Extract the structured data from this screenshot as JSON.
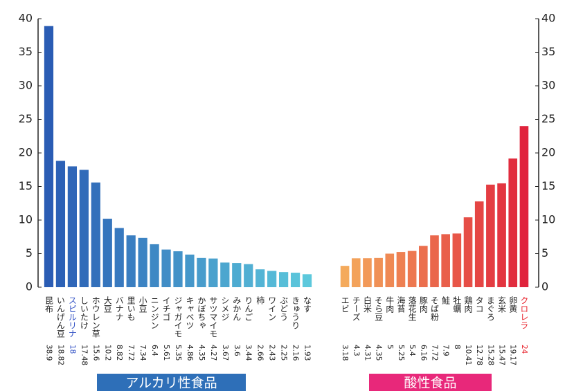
{
  "chart_data": [
    {
      "type": "bar",
      "axis_side": "left",
      "categories": [
        "昆布",
        "いんげん豆",
        "スピルリナ",
        "しいたけ",
        "ホウレン草",
        "大豆",
        "バナナ",
        "里いも",
        "小豆",
        "ニンジン",
        "イチゴ",
        "ジャガイモ",
        "キャベツ",
        "かぼちゃ",
        "サツマイモ",
        "シメジ",
        "みかん",
        "りんご",
        "柿",
        "ワイン",
        "ぶどう",
        "きゅうり",
        "なす"
      ],
      "values": [
        38.9,
        18.82,
        18,
        17.48,
        15.6,
        10.2,
        8.82,
        7.72,
        7.34,
        6.4,
        5.61,
        5.35,
        4.86,
        4.35,
        4.27,
        3.67,
        3.6,
        3.44,
        2.66,
        2.43,
        2.25,
        2.16,
        1.93
      ],
      "colors": [
        "#2a5cb4",
        "#5cc8dc"
      ],
      "highlight": {
        "index": 2,
        "color": "#2f4fc4"
      },
      "ylim": [
        0,
        40
      ],
      "yticks": [
        0,
        5,
        10,
        15,
        20,
        25,
        30,
        35,
        40
      ],
      "label": "アルカリ性食品",
      "label_color": "#2e6fb8"
    },
    {
      "type": "bar",
      "axis_side": "right",
      "categories": [
        "エビ",
        "チーズ",
        "白米",
        "そら豆",
        "牛肉",
        "海苔",
        "落花生",
        "豚肉",
        "そば粉",
        "鮭",
        "牡蠣",
        "鶏肉",
        "タコ",
        "まぐろ",
        "玄米",
        "卵黄",
        "クロレラ"
      ],
      "values": [
        3.18,
        4.3,
        4.31,
        4.35,
        5,
        5.25,
        5.4,
        6.16,
        7.72,
        7.9,
        8,
        10.41,
        12.78,
        15.28,
        15.47,
        19.17,
        24
      ],
      "colors": [
        "#f4aa5c",
        "#e0243c"
      ],
      "highlight": {
        "index": 16,
        "color": "#e8202a"
      },
      "ylim": [
        0,
        40
      ],
      "yticks": [
        0,
        5,
        10,
        15,
        20,
        25,
        30,
        35,
        40
      ],
      "label": "酸性食品",
      "label_color": "#e8287a"
    }
  ]
}
